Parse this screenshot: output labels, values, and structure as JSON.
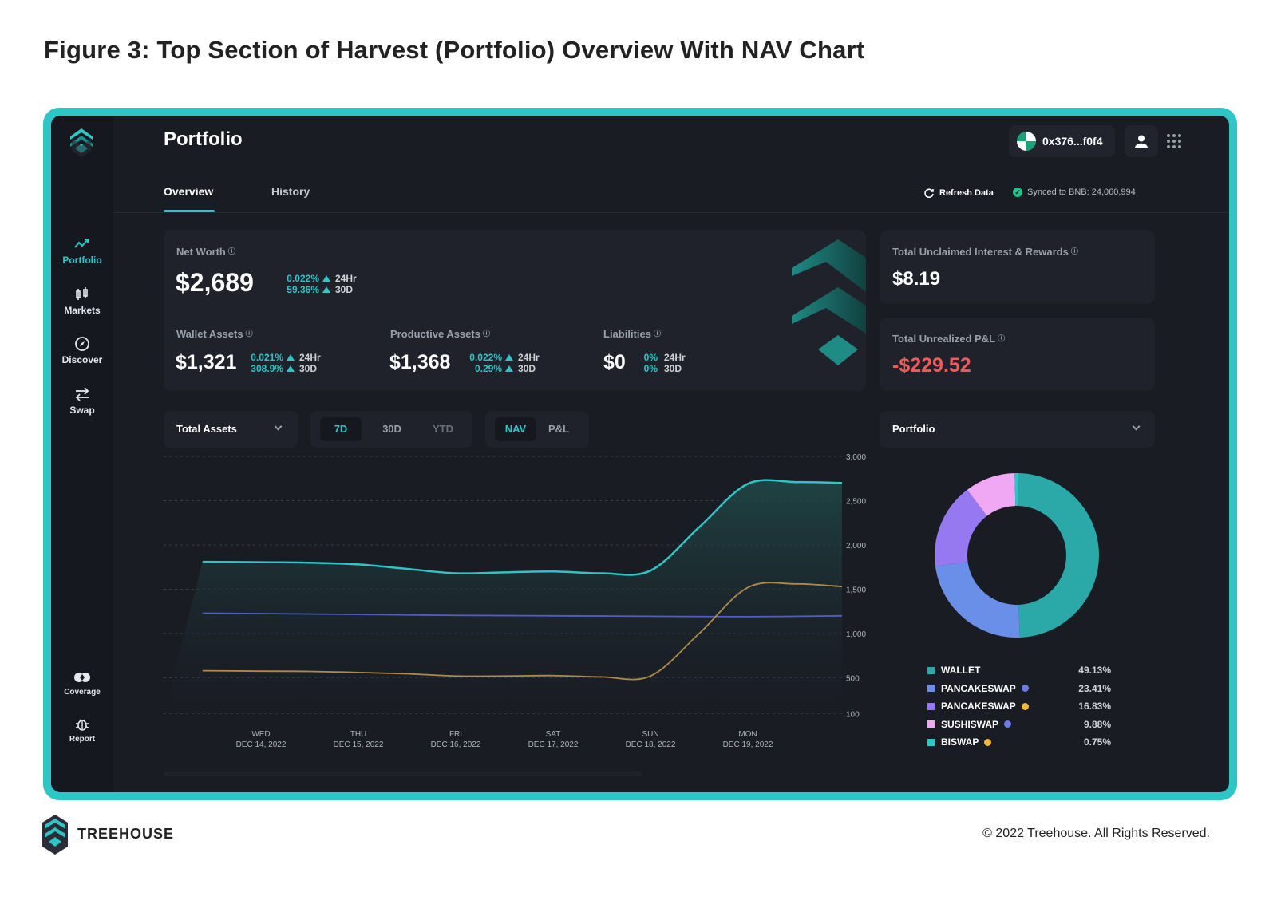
{
  "figure_title": "Figure 3: Top Section of Harvest (Portfolio) Overview With NAV Chart",
  "sidebar": {
    "items": [
      {
        "label": "Portfolio",
        "icon": "trend-icon",
        "active": true
      },
      {
        "label": "Markets",
        "icon": "candlestick-icon",
        "active": false
      },
      {
        "label": "Discover",
        "icon": "compass-icon",
        "active": false
      },
      {
        "label": "Swap",
        "icon": "swap-icon",
        "active": false
      }
    ],
    "bottom_items": [
      {
        "label": "Coverage",
        "icon": "coverage-icon"
      },
      {
        "label": "Report",
        "icon": "bug-icon"
      }
    ]
  },
  "header": {
    "title": "Portfolio",
    "account": "0x376...f0f4"
  },
  "tabs": [
    {
      "label": "Overview",
      "active": true
    },
    {
      "label": "History",
      "active": false
    }
  ],
  "sync": {
    "refresh_label": "Refresh Data",
    "status": "Synced to BNB: 24,060,994"
  },
  "net_worth": {
    "label": "Net Worth",
    "value": "$2,689",
    "changes": [
      {
        "pct": "0.022%",
        "period": "24Hr"
      },
      {
        "pct": "59.36%",
        "period": "30D"
      }
    ]
  },
  "wallet_assets": {
    "label": "Wallet Assets",
    "value": "$1,321",
    "changes": [
      {
        "pct": "0.021%",
        "period": "24Hr"
      },
      {
        "pct": "308.9%",
        "period": "30D"
      }
    ]
  },
  "productive_assets": {
    "label": "Productive Assets",
    "value": "$1,368",
    "changes": [
      {
        "pct": "0.022%",
        "period": "24Hr"
      },
      {
        "pct": "0.29%",
        "period": "30D"
      }
    ]
  },
  "liabilities": {
    "label": "Liabilities",
    "value": "$0",
    "changes": [
      {
        "pct": "0%",
        "period": "24Hr"
      },
      {
        "pct": "0%",
        "period": "30D"
      }
    ]
  },
  "unclaimed": {
    "label": "Total Unclaimed Interest & Rewards",
    "value": "$8.19"
  },
  "unrealized": {
    "label": "Total Unrealized P&L",
    "value": "-$229.52"
  },
  "controls": {
    "asset_select": "Total Assets",
    "ranges": [
      "7D",
      "30D",
      "YTD"
    ],
    "active_range": "7D",
    "modes": [
      "NAV",
      "P&L"
    ],
    "active_mode": "NAV",
    "portfolio_select": "Portfolio"
  },
  "chart_data": [
    {
      "type": "area",
      "x_labels": [
        [
          "WED",
          "DEC 14, 2022"
        ],
        [
          "THU",
          "DEC 15, 2022"
        ],
        [
          "FRI",
          "DEC 16, 2022"
        ],
        [
          "SAT",
          "DEC 17, 2022"
        ],
        [
          "SUN",
          "DEC 18, 2022"
        ],
        [
          "MON",
          "DEC 19, 2022"
        ]
      ],
      "y_ticks": [
        "3,000",
        "2,500",
        "2,000",
        "1,500",
        "1,000",
        "500",
        "100"
      ],
      "ylim": [
        100,
        3000
      ],
      "grid": true,
      "series": [
        {
          "color": "#2ec5c7",
          "x": [
            -0.6,
            0,
            0.5,
            1,
            1.5,
            2,
            2.5,
            3,
            3.5,
            4,
            4.5,
            5,
            5.5,
            6.4
          ],
          "values": [
            1810,
            1805,
            1800,
            1780,
            1730,
            1680,
            1690,
            1700,
            1680,
            1710,
            2200,
            2690,
            2710,
            2700
          ]
        },
        {
          "color": "#4f5fc0",
          "x": [
            -0.6,
            0,
            1,
            2,
            3,
            4,
            5,
            6.4
          ],
          "values": [
            1230,
            1225,
            1215,
            1205,
            1200,
            1195,
            1190,
            1200
          ]
        },
        {
          "color": "#b08a4a",
          "x": [
            -0.6,
            0,
            0.5,
            1,
            1.5,
            2,
            2.5,
            3,
            3.5,
            4,
            4.5,
            5,
            5.5,
            6.4
          ],
          "values": [
            580,
            575,
            572,
            560,
            545,
            520,
            520,
            525,
            510,
            520,
            1000,
            1520,
            1560,
            1530
          ]
        }
      ]
    },
    {
      "type": "pie",
      "categories": [
        "WALLET",
        "PANCAKESWAP",
        "PANCAKESWAP",
        "SUSHISWAP",
        "BISWAP"
      ],
      "values": [
        49.13,
        23.41,
        16.83,
        9.88,
        0.75
      ],
      "labels": [
        "49.13%",
        "23.41%",
        "16.83%",
        "9.88%",
        "0.75%"
      ],
      "colors": [
        "#2aa9a8",
        "#6a8fe8",
        "#9678f0",
        "#f0a8f5",
        "#2ec5c7"
      ],
      "token_colors": [
        "",
        "#6c7be8",
        "#f0b93a",
        "#6c7be8",
        "#f0b93a"
      ]
    }
  ],
  "footer": {
    "brand": "TREEHOUSE",
    "copyright": "© 2022 Treehouse. All Rights Reserved."
  }
}
